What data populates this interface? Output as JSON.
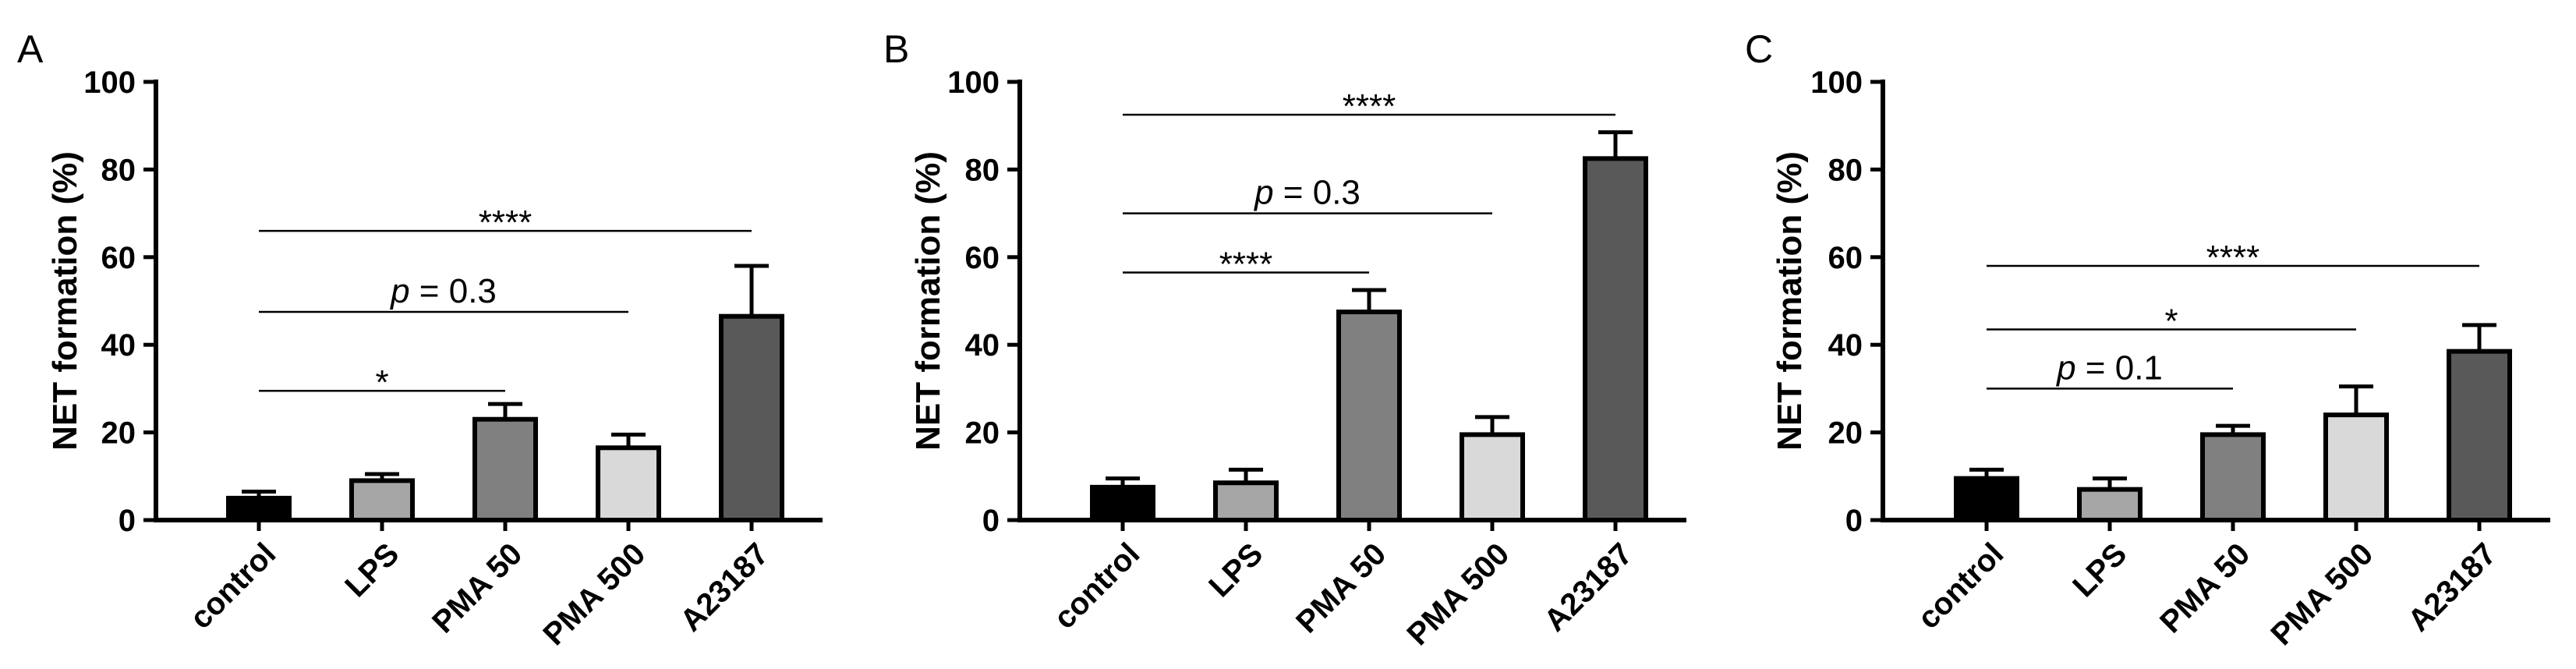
{
  "chart_data": [
    {
      "panel": "A",
      "type": "bar",
      "ylabel": "NET formation (%)",
      "ylim": [
        0,
        100
      ],
      "yticks": [
        "0",
        "20",
        "40",
        "60",
        "80",
        "100"
      ],
      "categories": [
        "control",
        "LPS",
        "PMA 50",
        "PMA 500",
        "A23187"
      ],
      "values": [
        5,
        9,
        23,
        16.5,
        46.5
      ],
      "errors": [
        1.5,
        1.5,
        3.5,
        3,
        11.5
      ],
      "colors": [
        "#000000",
        "#a6a6a6",
        "#808080",
        "#d9d9d9",
        "#595959"
      ],
      "significance": [
        {
          "from": 0,
          "to": 2,
          "value": 29.5,
          "label": "*",
          "italic_p": false
        },
        {
          "from": 0,
          "to": 3,
          "value": 47.5,
          "label": "= 0.3",
          "italic_p": true
        },
        {
          "from": 0,
          "to": 4,
          "value": 66,
          "label": "****",
          "italic_p": false
        }
      ]
    },
    {
      "panel": "B",
      "type": "bar",
      "ylabel": "NET formation (%)",
      "ylim": [
        0,
        100
      ],
      "yticks": [
        "0",
        "20",
        "40",
        "60",
        "80",
        "100"
      ],
      "categories": [
        "control",
        "LPS",
        "PMA 50",
        "PMA 500",
        "A23187"
      ],
      "values": [
        7.5,
        8.5,
        47.5,
        19.5,
        82.5
      ],
      "errors": [
        2,
        3,
        5,
        4,
        6
      ],
      "colors": [
        "#000000",
        "#a6a6a6",
        "#808080",
        "#d9d9d9",
        "#595959"
      ],
      "significance": [
        {
          "from": 0,
          "to": 2,
          "value": 56.5,
          "label": "****",
          "italic_p": false
        },
        {
          "from": 0,
          "to": 3,
          "value": 70,
          "label": "= 0.3",
          "italic_p": true
        },
        {
          "from": 0,
          "to": 4,
          "value": 92.5,
          "label": "****",
          "italic_p": false
        }
      ]
    },
    {
      "panel": "C",
      "type": "bar",
      "ylabel": "NET formation (%)",
      "ylim": [
        0,
        100
      ],
      "yticks": [
        "0",
        "20",
        "40",
        "60",
        "80",
        "100"
      ],
      "categories": [
        "control",
        "LPS",
        "PMA 50",
        "PMA 500",
        "A23187"
      ],
      "values": [
        9.5,
        7,
        19.5,
        24,
        38.5
      ],
      "errors": [
        2,
        2.5,
        2,
        6.5,
        6
      ],
      "colors": [
        "#000000",
        "#a6a6a6",
        "#808080",
        "#d9d9d9",
        "#595959"
      ],
      "significance": [
        {
          "from": 0,
          "to": 2,
          "value": 30,
          "label": "= 0.1",
          "italic_p": true
        },
        {
          "from": 0,
          "to": 3,
          "value": 43.5,
          "label": "*",
          "italic_p": false
        },
        {
          "from": 0,
          "to": 4,
          "value": 58,
          "label": "****",
          "italic_p": false
        }
      ]
    }
  ]
}
